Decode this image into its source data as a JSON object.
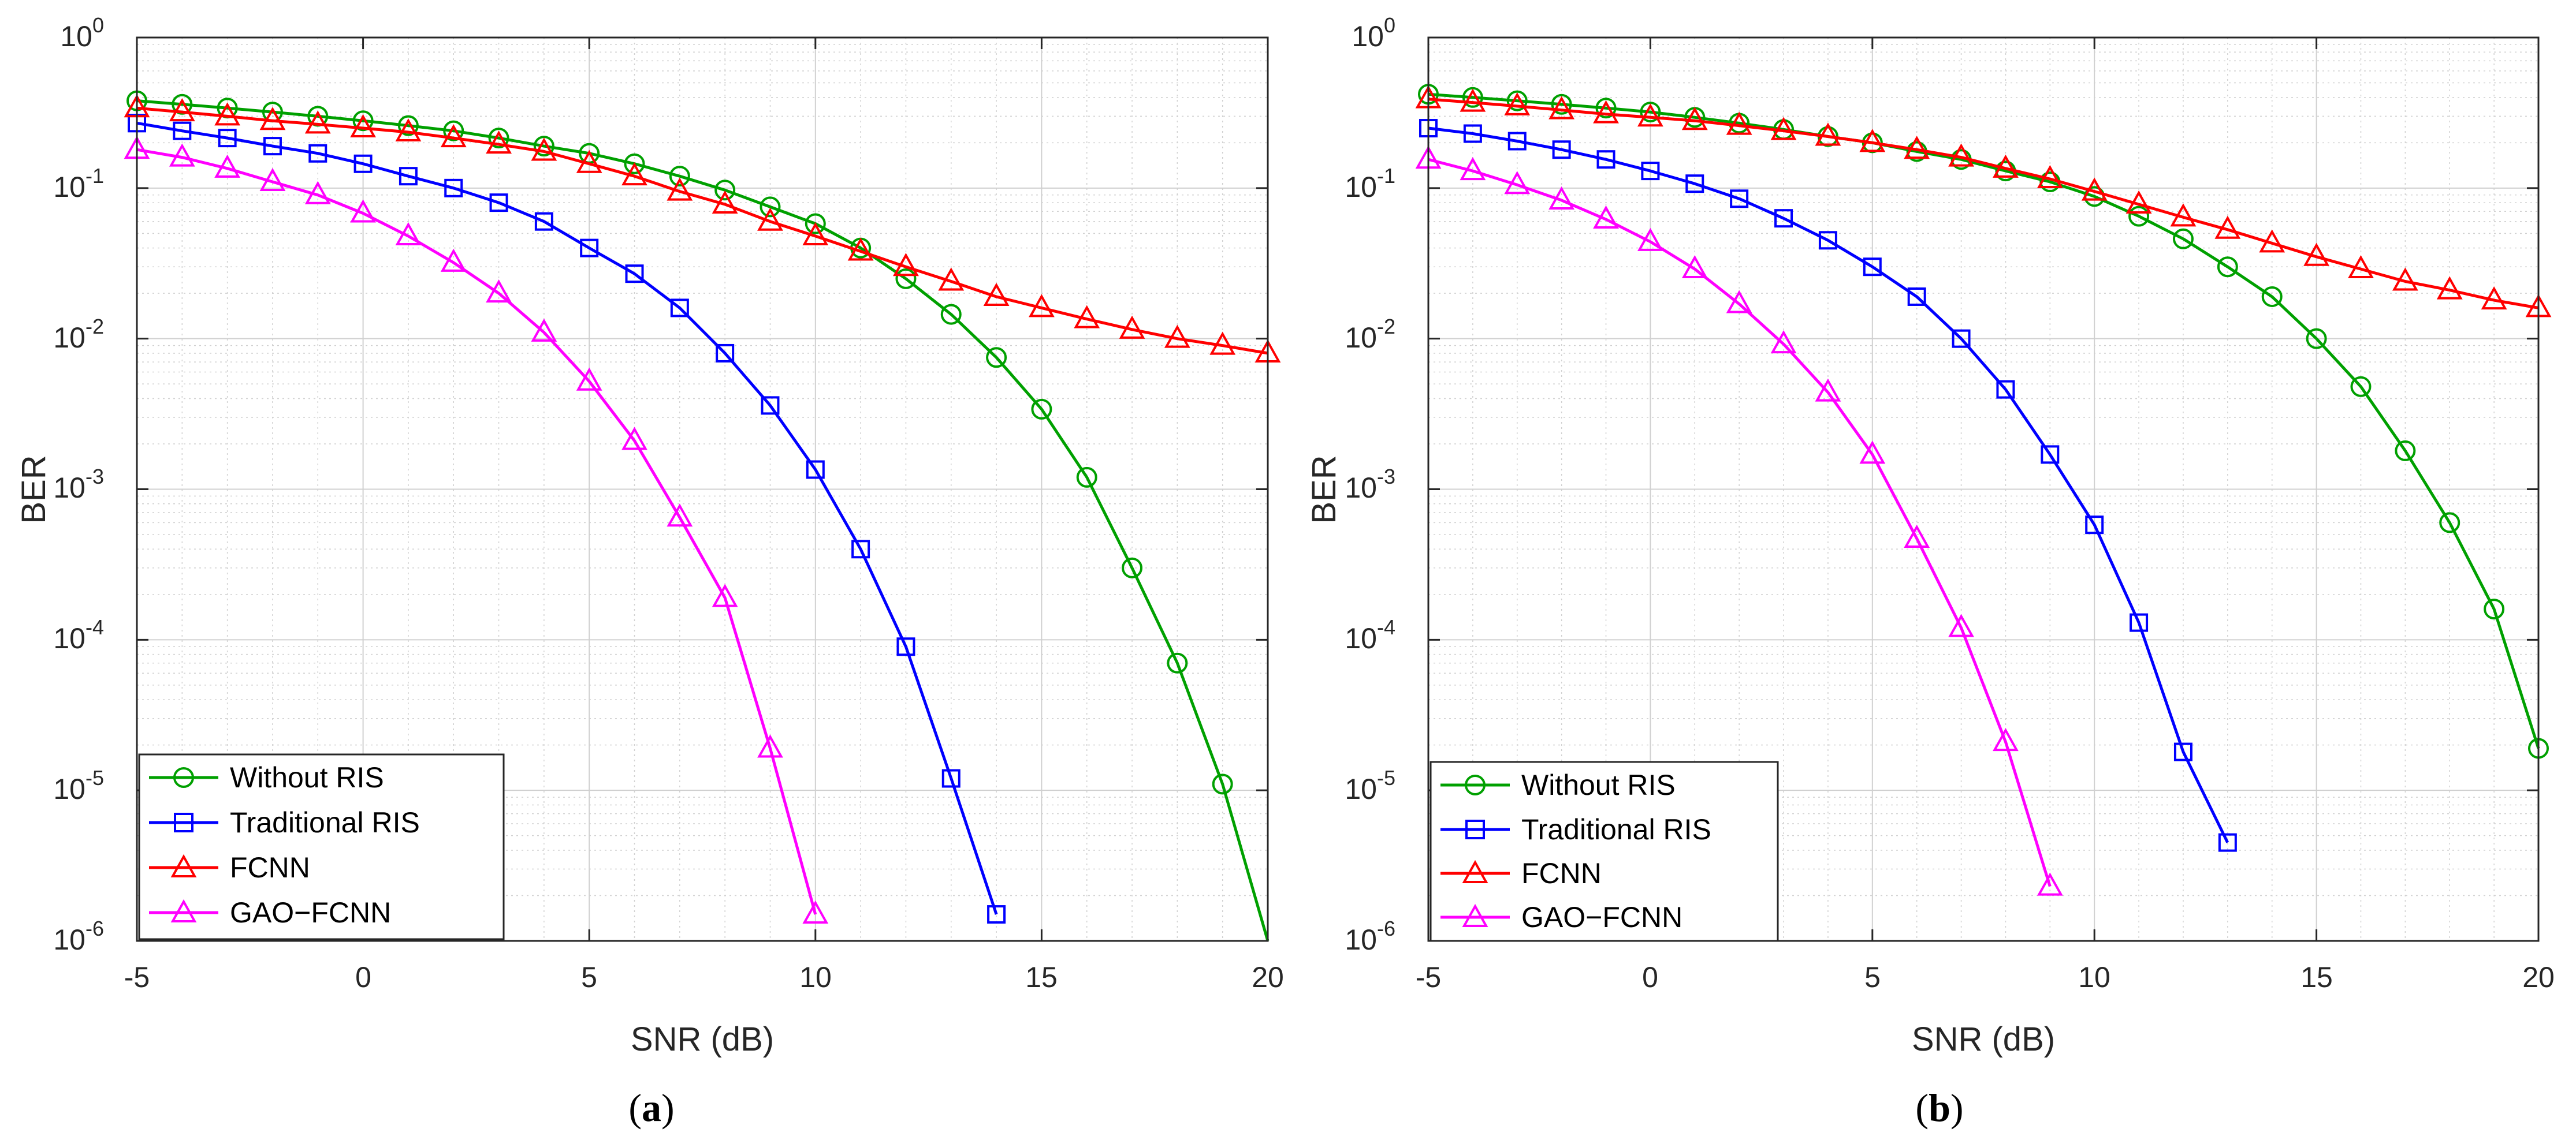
{
  "colors": {
    "without_ris": "#00a000",
    "traditional_ris": "#0000ff",
    "fcnn": "#ff0000",
    "gao_fcnn": "#ff00ff",
    "axis": "#262626",
    "grid": "#d0d0d0"
  },
  "chart_data": [
    {
      "type": "line",
      "caption": "a",
      "xlabel": "SNR (dB)",
      "ylabel": "BER",
      "yscale": "log",
      "xlim": [
        -5,
        20
      ],
      "ylim": [
        1e-06,
        1
      ],
      "xticks": [
        "-5",
        "0",
        "5",
        "10",
        "15",
        "20"
      ],
      "yticks": [
        "-6",
        "-5",
        "-4",
        "-3",
        "-2",
        "-1",
        "0"
      ],
      "ytick_base": "10",
      "grid": true,
      "legend_position": "bottom-left",
      "series": [
        {
          "name": "Without RIS",
          "marker": "circle",
          "color_key": "without_ris",
          "x": [
            -5,
            -4,
            -3,
            -2,
            -1,
            0,
            1,
            2,
            3,
            4,
            5,
            6,
            7,
            8,
            9,
            10,
            11,
            12,
            13,
            14,
            15,
            16,
            17,
            18,
            19,
            20
          ],
          "y": [
            0.38,
            0.36,
            0.34,
            0.32,
            0.3,
            0.28,
            0.26,
            0.24,
            0.215,
            0.19,
            0.17,
            0.145,
            0.12,
            0.097,
            0.075,
            0.058,
            0.04,
            0.025,
            0.0145,
            0.0075,
            0.0034,
            0.0012,
            0.0003,
            7e-05,
            1.1e-05,
            1e-06
          ]
        },
        {
          "name": "Traditional RIS",
          "marker": "square",
          "color_key": "traditional_ris",
          "x": [
            -5,
            -4,
            -3,
            -2,
            -1,
            0,
            1,
            2,
            3,
            4,
            5,
            6,
            7,
            8,
            9,
            10,
            11,
            12,
            13,
            14
          ],
          "y": [
            0.27,
            0.24,
            0.215,
            0.19,
            0.17,
            0.145,
            0.12,
            0.1,
            0.08,
            0.06,
            0.04,
            0.027,
            0.016,
            0.008,
            0.0036,
            0.00135,
            0.0004,
            9e-05,
            1.2e-05,
            1.5e-06
          ]
        },
        {
          "name": "FCNN",
          "marker": "triangle",
          "color_key": "fcnn",
          "x": [
            -5,
            -4,
            -3,
            -2,
            -1,
            0,
            1,
            2,
            3,
            4,
            5,
            6,
            7,
            8,
            9,
            10,
            11,
            12,
            13,
            14,
            15,
            16,
            17,
            18,
            19,
            20
          ],
          "y": [
            0.34,
            0.32,
            0.3,
            0.28,
            0.265,
            0.25,
            0.235,
            0.215,
            0.195,
            0.175,
            0.145,
            0.12,
            0.095,
            0.078,
            0.06,
            0.048,
            0.038,
            0.03,
            0.024,
            0.019,
            0.016,
            0.0135,
            0.0115,
            0.01,
            0.009,
            0.008
          ]
        },
        {
          "name": "GAO−FCNN",
          "marker": "triangle",
          "color_key": "gao_fcnn",
          "x": [
            -5,
            -4,
            -3,
            -2,
            -1,
            0,
            1,
            2,
            3,
            4,
            5,
            6,
            7,
            8,
            9,
            10
          ],
          "y": [
            0.18,
            0.16,
            0.135,
            0.11,
            0.09,
            0.068,
            0.048,
            0.032,
            0.02,
            0.011,
            0.0052,
            0.0021,
            0.00065,
            0.00019,
            1.9e-05,
            1.5e-06
          ]
        }
      ]
    },
    {
      "type": "line",
      "caption": "b",
      "xlabel": "SNR (dB)",
      "ylabel": "BER",
      "yscale": "log",
      "xlim": [
        -5,
        20
      ],
      "ylim": [
        1e-06,
        1
      ],
      "xticks": [
        "-5",
        "0",
        "5",
        "10",
        "15",
        "20"
      ],
      "yticks": [
        "-6",
        "-5",
        "-4",
        "-3",
        "-2",
        "-1",
        "0"
      ],
      "ytick_base": "10",
      "grid": true,
      "legend_position": "bottom-left",
      "series": [
        {
          "name": "Without RIS",
          "marker": "circle",
          "color_key": "without_ris",
          "x": [
            -5,
            -4,
            -3,
            -2,
            -1,
            0,
            1,
            2,
            3,
            4,
            5,
            6,
            7,
            8,
            9,
            10,
            11,
            12,
            13,
            14,
            15,
            16,
            17,
            18,
            19,
            20
          ],
          "y": [
            0.42,
            0.4,
            0.38,
            0.36,
            0.34,
            0.32,
            0.295,
            0.27,
            0.245,
            0.22,
            0.2,
            0.175,
            0.155,
            0.13,
            0.11,
            0.088,
            0.065,
            0.046,
            0.03,
            0.019,
            0.01,
            0.0048,
            0.0018,
            0.0006,
            0.00016,
            1.9e-05
          ]
        },
        {
          "name": "Traditional RIS",
          "marker": "square",
          "color_key": "traditional_ris",
          "x": [
            -5,
            -4,
            -3,
            -2,
            -1,
            0,
            1,
            2,
            3,
            4,
            5,
            6,
            7,
            8,
            9,
            10,
            11,
            12,
            13
          ],
          "y": [
            0.25,
            0.23,
            0.205,
            0.18,
            0.155,
            0.13,
            0.107,
            0.085,
            0.063,
            0.045,
            0.03,
            0.019,
            0.01,
            0.0046,
            0.0017,
            0.00058,
            0.00013,
            1.8e-05,
            4.5e-06
          ]
        },
        {
          "name": "FCNN",
          "marker": "triangle",
          "color_key": "fcnn",
          "x": [
            -5,
            -4,
            -3,
            -2,
            -1,
            0,
            1,
            2,
            3,
            4,
            5,
            6,
            7,
            8,
            9,
            10,
            11,
            12,
            13,
            14,
            15,
            16,
            17,
            18,
            19,
            20
          ],
          "y": [
            0.39,
            0.37,
            0.35,
            0.33,
            0.31,
            0.295,
            0.28,
            0.26,
            0.24,
            0.22,
            0.2,
            0.18,
            0.16,
            0.135,
            0.115,
            0.095,
            0.078,
            0.064,
            0.053,
            0.043,
            0.035,
            0.029,
            0.024,
            0.021,
            0.018,
            0.016
          ]
        },
        {
          "name": "GAO−FCNN",
          "marker": "triangle",
          "color_key": "gao_fcnn",
          "x": [
            -5,
            -4,
            -3,
            -2,
            -1,
            0,
            1,
            2,
            3,
            4,
            5,
            6,
            7,
            8,
            9
          ],
          "y": [
            0.155,
            0.13,
            0.105,
            0.083,
            0.062,
            0.044,
            0.029,
            0.017,
            0.0092,
            0.0044,
            0.0017,
            0.00047,
            0.00012,
            2.1e-05,
            2.3e-06
          ]
        }
      ]
    }
  ]
}
